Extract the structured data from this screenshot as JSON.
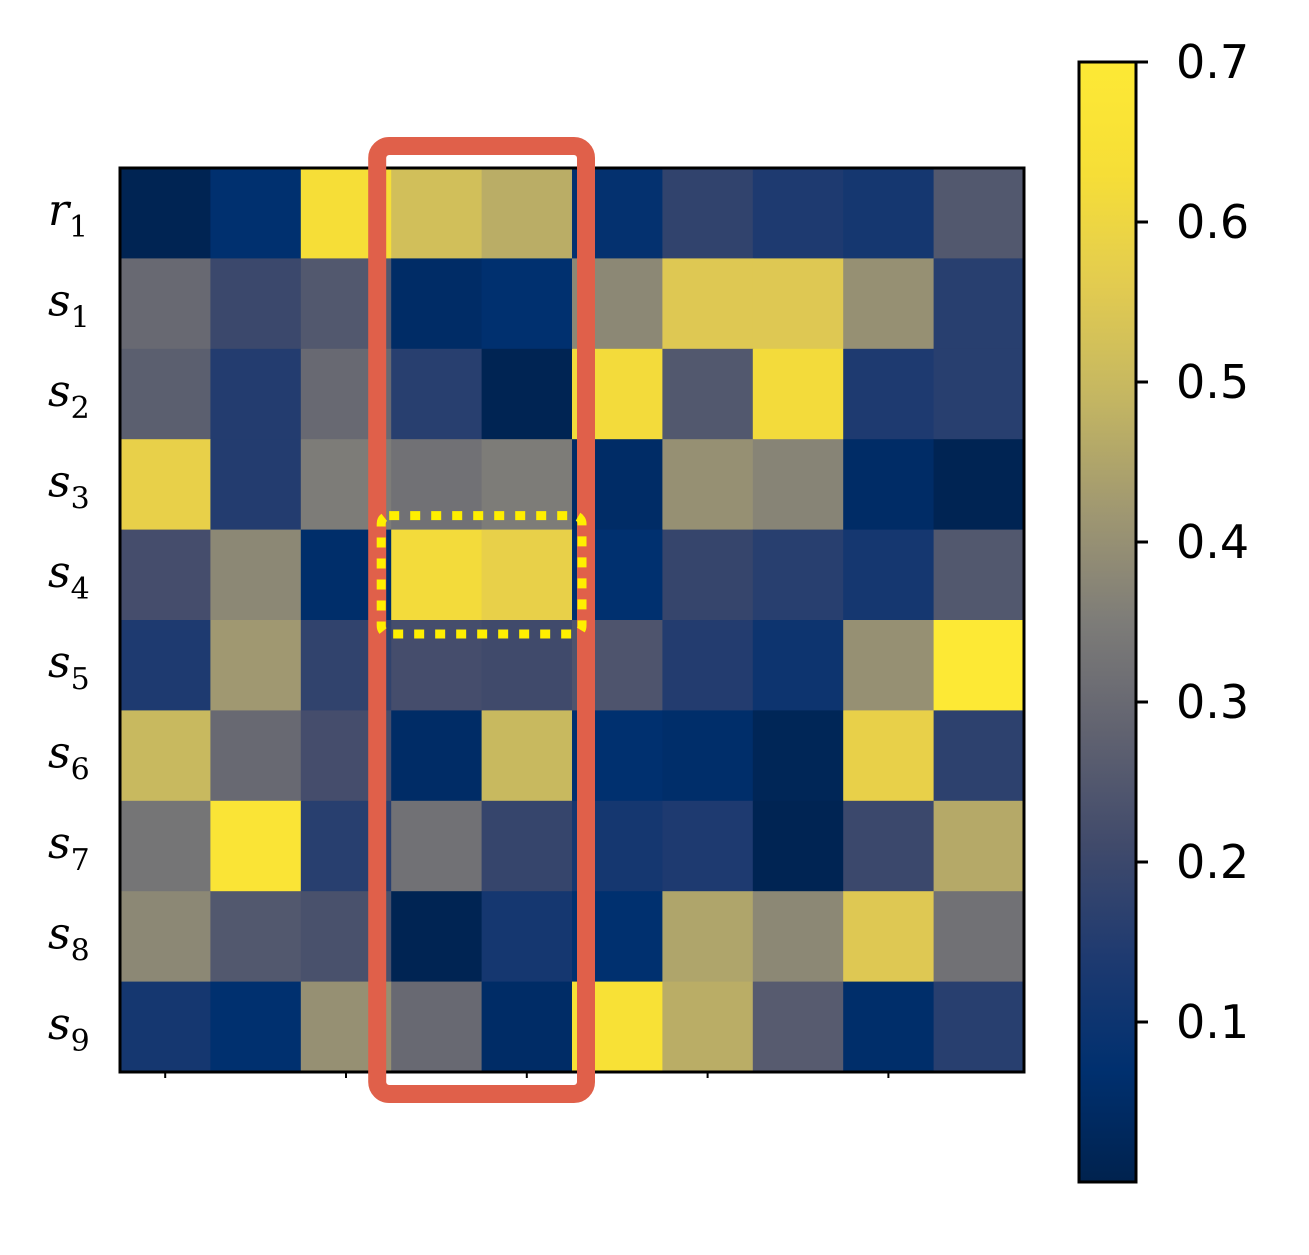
{
  "chart_data": {
    "type": "heatmap",
    "colormap": "cividis",
    "value_range": [
      0.0,
      0.7
    ],
    "rows": [
      {
        "name": "r",
        "sub": "1"
      },
      {
        "name": "s",
        "sub": "1"
      },
      {
        "name": "s",
        "sub": "2"
      },
      {
        "name": "s",
        "sub": "3"
      },
      {
        "name": "s",
        "sub": "4"
      },
      {
        "name": "s",
        "sub": "5"
      },
      {
        "name": "s",
        "sub": "6"
      },
      {
        "name": "s",
        "sub": "7"
      },
      {
        "name": "s",
        "sub": "8"
      },
      {
        "name": "s",
        "sub": "9"
      }
    ],
    "n_cols": 10,
    "values": [
      [
        0.01,
        0.07,
        0.63,
        0.52,
        0.47,
        0.08,
        0.18,
        0.14,
        0.12,
        0.25
      ],
      [
        0.3,
        0.2,
        0.25,
        0.05,
        0.07,
        0.38,
        0.55,
        0.55,
        0.4,
        0.16
      ],
      [
        0.27,
        0.15,
        0.3,
        0.16,
        0.01,
        0.62,
        0.25,
        0.62,
        0.14,
        0.16
      ],
      [
        0.58,
        0.15,
        0.35,
        0.32,
        0.35,
        0.05,
        0.4,
        0.37,
        0.05,
        0.01
      ],
      [
        0.22,
        0.38,
        0.06,
        0.62,
        0.58,
        0.07,
        0.19,
        0.16,
        0.12,
        0.25
      ],
      [
        0.14,
        0.42,
        0.18,
        0.22,
        0.21,
        0.24,
        0.15,
        0.1,
        0.4,
        0.7
      ],
      [
        0.5,
        0.3,
        0.22,
        0.05,
        0.5,
        0.07,
        0.06,
        0.02,
        0.58,
        0.17
      ],
      [
        0.33,
        0.67,
        0.16,
        0.32,
        0.19,
        0.12,
        0.14,
        0.01,
        0.2,
        0.46
      ],
      [
        0.38,
        0.25,
        0.23,
        0.01,
        0.12,
        0.07,
        0.45,
        0.38,
        0.55,
        0.32
      ],
      [
        0.12,
        0.07,
        0.4,
        0.3,
        0.05,
        0.65,
        0.47,
        0.26,
        0.06,
        0.16
      ]
    ],
    "colorbar_ticks": [
      0.1,
      0.2,
      0.3,
      0.4,
      0.5,
      0.6,
      0.7
    ],
    "highlights": [
      {
        "kind": "column-band",
        "cols": [
          3,
          4
        ],
        "rows": [
          0,
          9
        ],
        "color": "#e0604a",
        "style": "solid-rounded"
      },
      {
        "kind": "cell-group",
        "cols": [
          3,
          4
        ],
        "rows": [
          4,
          4
        ],
        "color": "#ffef00",
        "style": "dotted"
      }
    ],
    "grid": false,
    "legend": "colorbar-right"
  }
}
